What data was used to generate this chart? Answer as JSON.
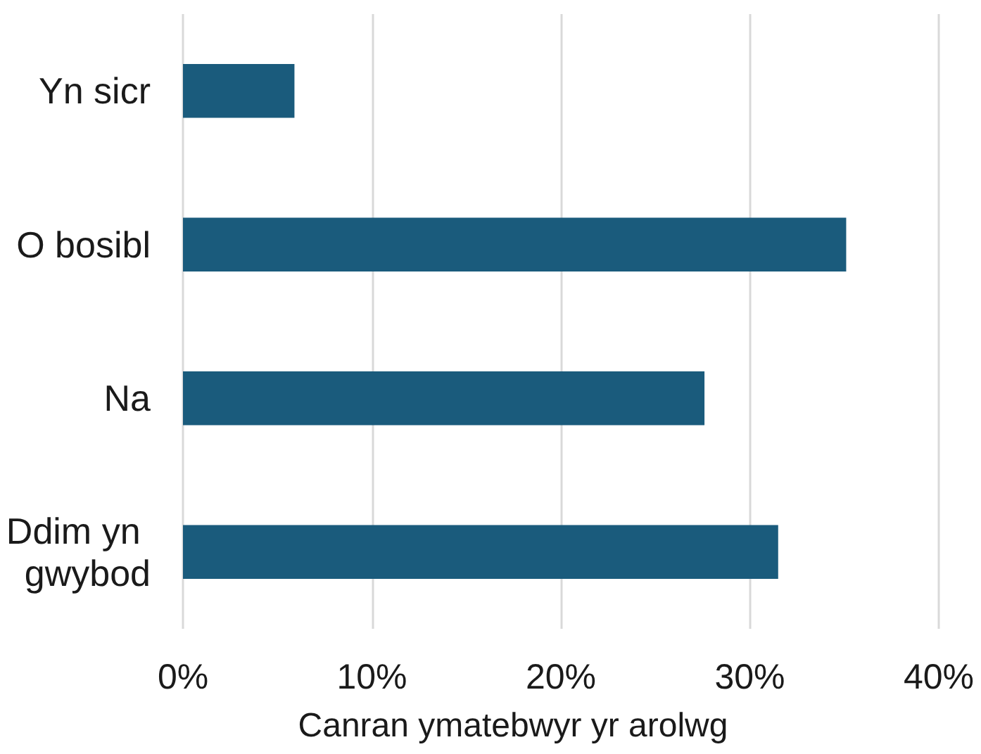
{
  "chart_data": {
    "type": "bar",
    "orientation": "horizontal",
    "xlabel": "Canran ymatebwyr yr arolwg",
    "categories": [
      "Yn sicr",
      "O bosibl",
      "Na",
      "Ddim yn gwybod"
    ],
    "values": [
      5.9,
      35.1,
      27.6,
      31.5
    ],
    "color": "#1a5b7c",
    "xlim": [
      0,
      40
    ],
    "xticks": [
      {
        "value": 0,
        "label": "0%"
      },
      {
        "value": 10,
        "label": "10%"
      },
      {
        "value": 20,
        "label": "20%"
      },
      {
        "value": 30,
        "label": "30%"
      },
      {
        "value": 40,
        "label": "40%"
      }
    ],
    "grid": "x"
  }
}
